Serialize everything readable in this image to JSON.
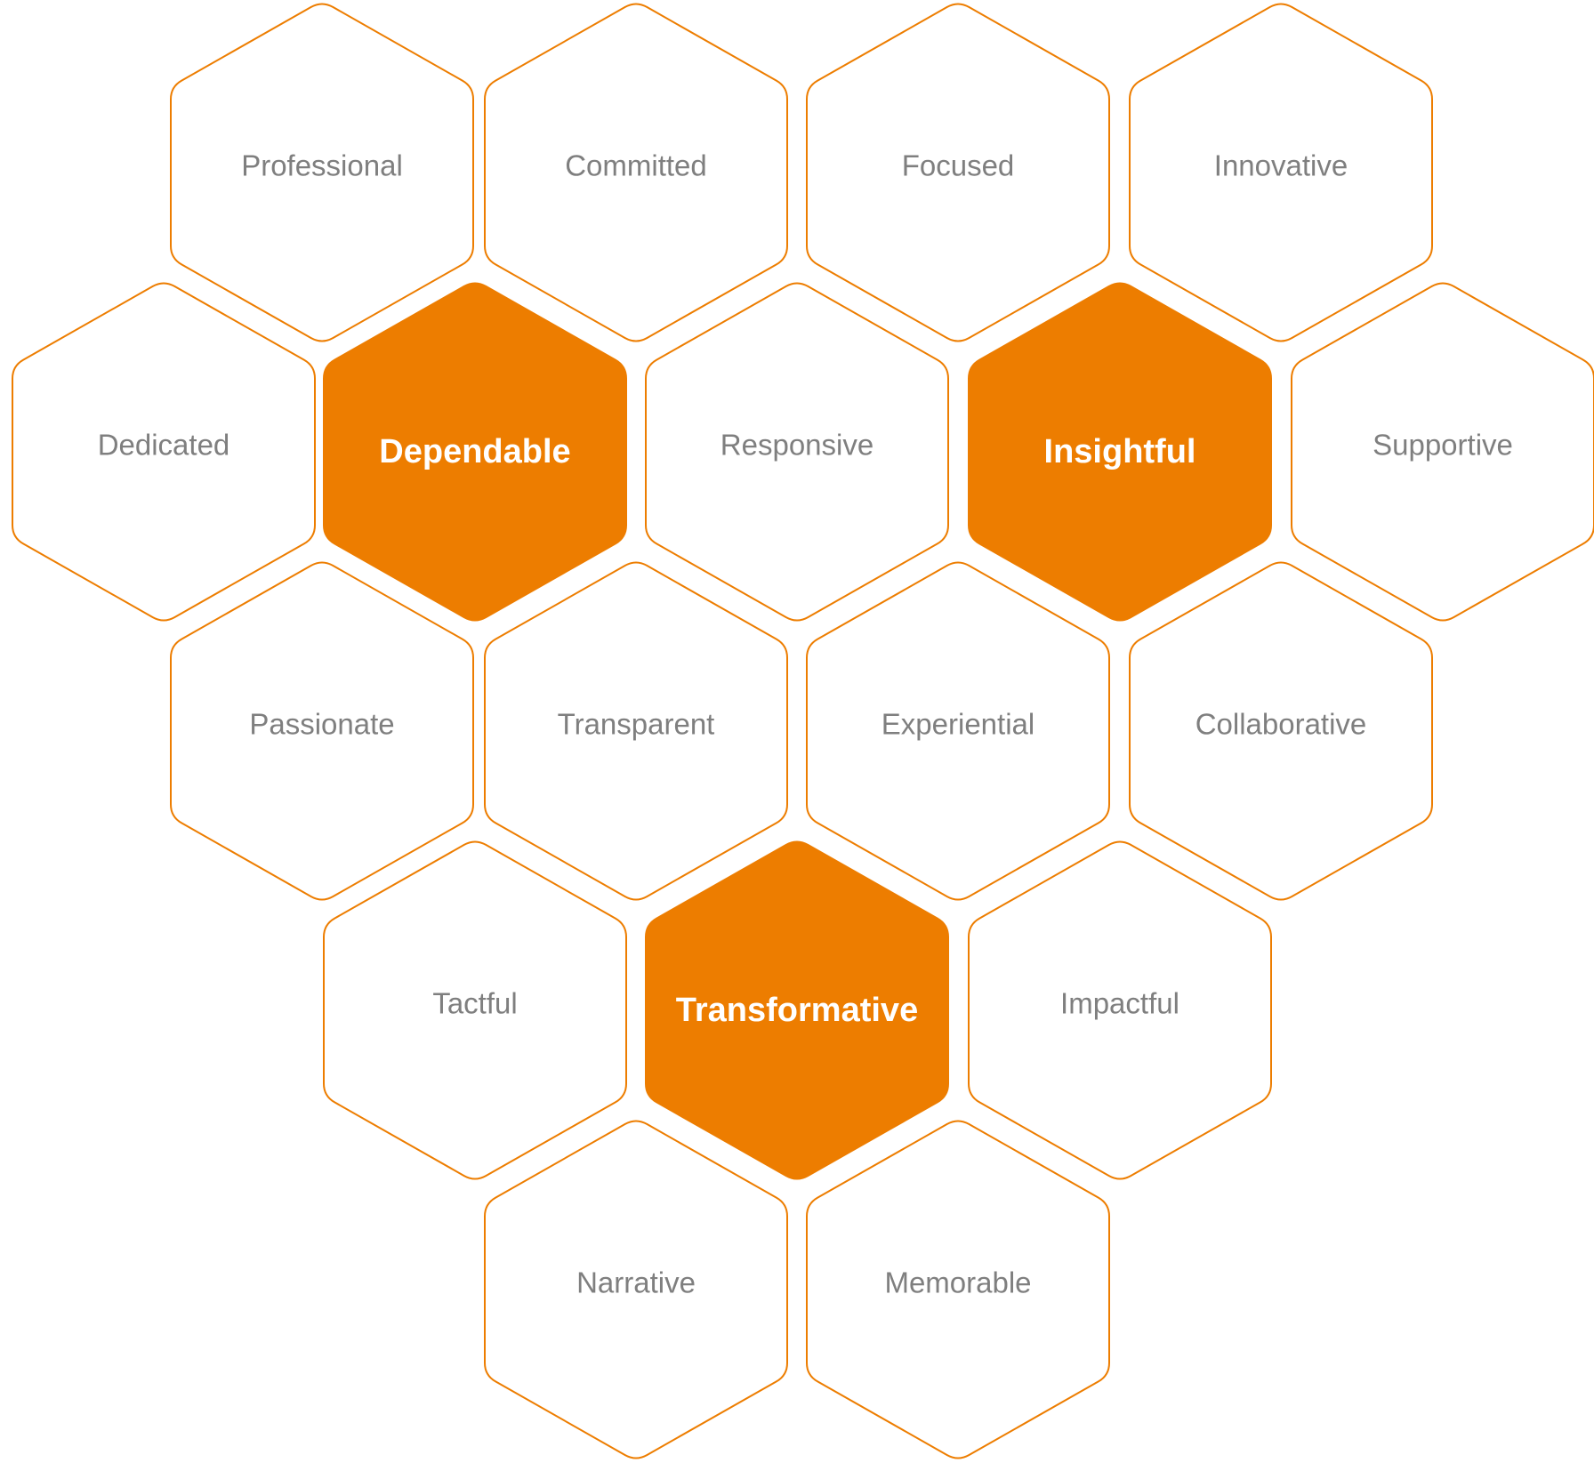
{
  "colors": {
    "accent": "#ED7D00",
    "outline": "#ED7D00",
    "text": "#7F7F7F",
    "emphasis_text": "#FFFFFF",
    "background": "#FFFFFF"
  },
  "hexagons": [
    {
      "label": "Professional",
      "emphasis": false
    },
    {
      "label": "Committed",
      "emphasis": false
    },
    {
      "label": "Focused",
      "emphasis": false
    },
    {
      "label": "Innovative",
      "emphasis": false
    },
    {
      "label": "Dedicated",
      "emphasis": false
    },
    {
      "label": "Dependable",
      "emphasis": true
    },
    {
      "label": "Responsive",
      "emphasis": false
    },
    {
      "label": "Insightful",
      "emphasis": true
    },
    {
      "label": "Supportive",
      "emphasis": false
    },
    {
      "label": "Passionate",
      "emphasis": false
    },
    {
      "label": "Transparent",
      "emphasis": false
    },
    {
      "label": "Experiential",
      "emphasis": false
    },
    {
      "label": "Collaborative",
      "emphasis": false
    },
    {
      "label": "Tactful",
      "emphasis": false
    },
    {
      "label": "Transformative",
      "emphasis": true
    },
    {
      "label": "Impactful",
      "emphasis": false
    },
    {
      "label": "Narrative",
      "emphasis": false
    },
    {
      "label": "Memorable",
      "emphasis": false
    }
  ]
}
